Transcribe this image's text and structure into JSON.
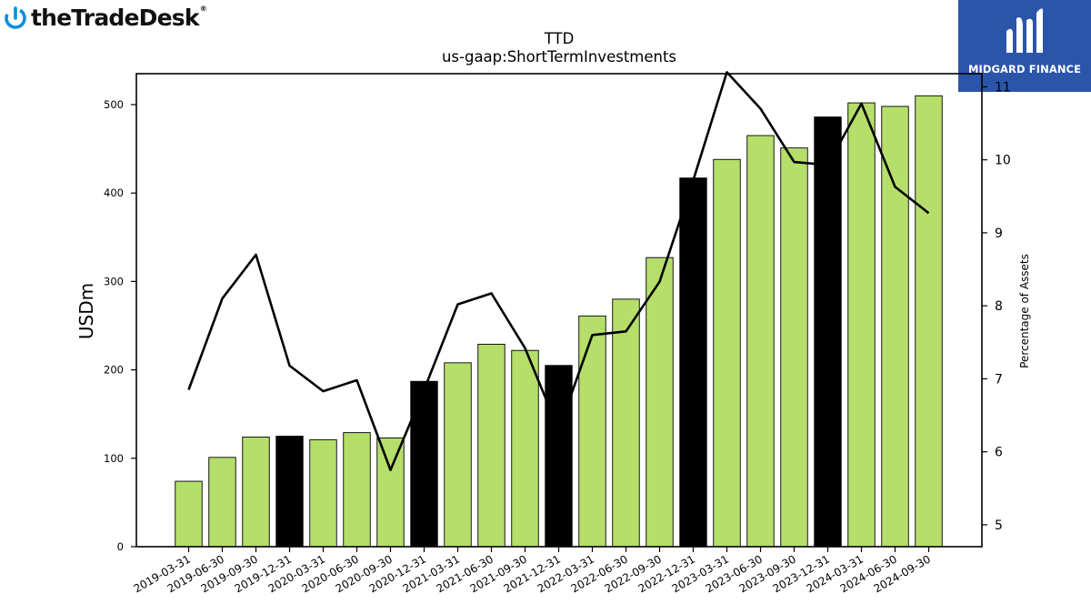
{
  "logos": {
    "left_text": "theTradeDesk",
    "left_tm": "®",
    "right_text": "MIDGARD FINANCE",
    "brand_color": "#0a8fd8",
    "panel_color": "#2b55a8"
  },
  "chart_data": {
    "type": "bar",
    "title": "TTD",
    "subtitle": "us-gaap:ShortTermInvestments",
    "ylabel": "USDm",
    "y2label": "Percentage of Assets",
    "ylim": [
      0,
      535
    ],
    "y2lim": [
      4.7,
      11.18
    ],
    "yticks": [
      0,
      100,
      200,
      300,
      400,
      500
    ],
    "y2ticks": [
      5,
      6,
      7,
      8,
      9,
      10,
      11
    ],
    "categories": [
      "2019-03-31",
      "2019-06-30",
      "2019-09-30",
      "2019-12-31",
      "2020-03-31",
      "2020-06-30",
      "2020-09-30",
      "2020-12-31",
      "2021-03-31",
      "2021-06-30",
      "2021-09-30",
      "2021-12-31",
      "2022-03-31",
      "2022-06-30",
      "2022-09-30",
      "2022-12-31",
      "2023-03-31",
      "2023-06-30",
      "2023-09-30",
      "2023-12-31",
      "2024-03-31",
      "2024-06-30",
      "2024-09-30"
    ],
    "series": [
      {
        "kind": "bar",
        "values": [
          74,
          101,
          124,
          125,
          121,
          129,
          123,
          187,
          208,
          229,
          222,
          205,
          261,
          280,
          327,
          417,
          438,
          465,
          451,
          486,
          502,
          498,
          510
        ],
        "colors_by_quarter": {
          "q4": "#000000",
          "other": "#b5de6b"
        }
      },
      {
        "kind": "line",
        "axis": "right",
        "color": "#000000",
        "values": [
          6.85,
          8.1,
          8.7,
          7.18,
          6.83,
          6.98,
          5.75,
          6.85,
          8.02,
          8.17,
          7.42,
          6.3,
          7.6,
          7.65,
          8.33,
          9.72,
          11.2,
          10.7,
          9.97,
          9.93,
          10.77,
          9.63,
          9.27
        ]
      }
    ],
    "grid": false
  }
}
